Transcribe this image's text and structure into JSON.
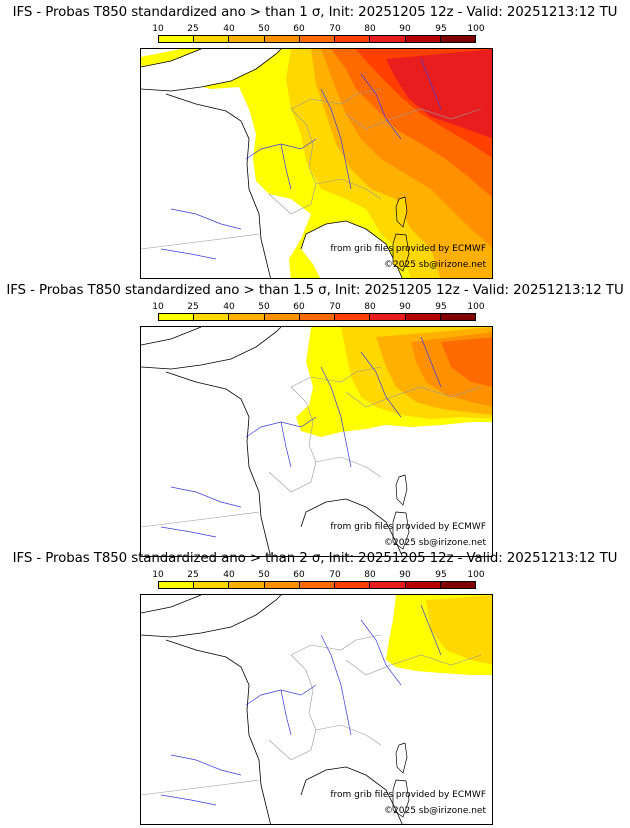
{
  "colors": {
    "c10": "#ffff00",
    "c25": "#ffd800",
    "c40": "#ffb000",
    "c50": "#ff9000",
    "c60": "#ff6a00",
    "c70": "#ff4000",
    "c80": "#e81e1e",
    "c90": "#b40000",
    "c95": "#800000",
    "sea": "#ffffff",
    "river": "#3b3bdf",
    "coast": "#000000",
    "border": "#999999"
  },
  "colorbar": {
    "ticks": [
      "10",
      "25",
      "40",
      "50",
      "60",
      "70",
      "80",
      "90",
      "95",
      "100"
    ],
    "colors": [
      "#ffff00",
      "#ffd800",
      "#ffb000",
      "#ff9000",
      "#ff6a00",
      "#ff4000",
      "#e81e1e",
      "#b40000",
      "#800000"
    ]
  },
  "panels": [
    {
      "title": "IFS - Probas T850  standardized ano > than 1 σ, Init: 20251205 12z - Valid: 20251213:12 TU",
      "source_note": "from grib files provided by ECMWF",
      "copyright": "©2025 sb@irizone.net"
    },
    {
      "title": "IFS - Probas T850  standardized ano > than 1.5 σ, Init: 20251205 12z - Valid: 20251213:12 TU",
      "source_note": "from grib files provided by ECMWF",
      "copyright": "©2025 sb@irizone.net"
    },
    {
      "title": "IFS - Probas T850  standardized ano > than 2 σ, Init: 20251205 12z - Valid: 20251213:12 TU",
      "source_note": "from grib files provided by ECMWF",
      "copyright": "©2025 sb@irizone.net"
    }
  ]
}
